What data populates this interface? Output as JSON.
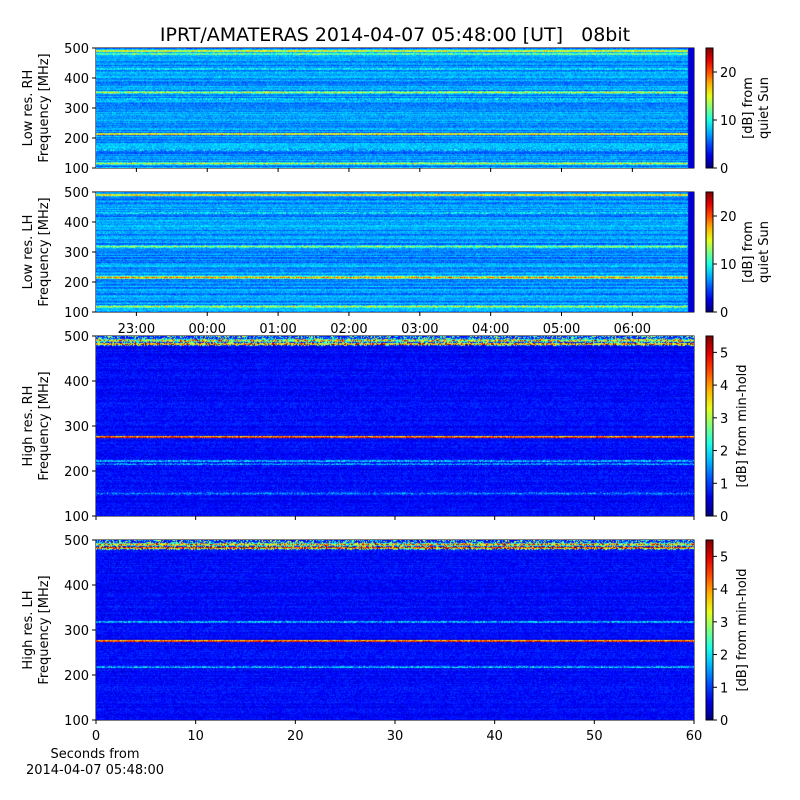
{
  "title": "IPRT/AMATERAS 2014-04-07 05:48:00 [UT]   08bit",
  "bottom_xlabel_line1": "Seconds from",
  "bottom_xlabel_line2": "2014-04-07 05:48:00",
  "marker_color": "#ff00ff",
  "chart_data": [
    {
      "type": "heatmap",
      "name": "low-res-rh",
      "ylabel": [
        "Low res. RH",
        "Frequency [MHz]"
      ],
      "ylim": [
        100,
        500
      ],
      "yticks": [
        100,
        200,
        300,
        400,
        500
      ],
      "xtime_range_h": [
        22.43,
        30.87
      ],
      "marker_time": "05:48",
      "cbar_label": [
        "[dB] from",
        "quiet Sun"
      ],
      "cbar_range": [
        0,
        25
      ],
      "cbar_ticks": [
        0,
        10,
        20
      ],
      "bright_bands_MHz": [
        {
          "f": 490,
          "level": 0.7
        },
        {
          "f": 480,
          "level": 0.55
        },
        {
          "f": 430,
          "level": 0.4
        },
        {
          "f": 352,
          "level": 0.6
        },
        {
          "f": 330,
          "level": 0.38
        },
        {
          "f": 213,
          "level": 0.72
        },
        {
          "f": 160,
          "level": 0.35
        },
        {
          "f": 115,
          "level": 0.6
        }
      ]
    },
    {
      "type": "heatmap",
      "name": "low-res-lh",
      "ylabel": [
        "Low res. LH",
        "Frequency [MHz]"
      ],
      "ylim": [
        100,
        500
      ],
      "yticks": [
        100,
        200,
        300,
        400,
        500
      ],
      "xtime_range_h": [
        22.43,
        30.87
      ],
      "xticks": [
        "23:00",
        "00:00",
        "01:00",
        "02:00",
        "03:00",
        "04:00",
        "05:00",
        "06:00"
      ],
      "marker_time": "05:48",
      "cbar_label": [
        "[dB] from",
        "quiet Sun"
      ],
      "cbar_range": [
        0,
        25
      ],
      "cbar_ticks": [
        0,
        10,
        20
      ],
      "bright_bands_MHz": [
        {
          "f": 490,
          "level": 0.75
        },
        {
          "f": 430,
          "level": 0.4
        },
        {
          "f": 318,
          "level": 0.55
        },
        {
          "f": 215,
          "level": 0.75
        },
        {
          "f": 118,
          "level": 0.6
        }
      ]
    },
    {
      "type": "heatmap",
      "name": "high-res-rh",
      "ylabel": [
        "High res. RH",
        "Frequency [MHz]"
      ],
      "ylim": [
        100,
        500
      ],
      "yticks": [
        100,
        200,
        300,
        400,
        500
      ],
      "xlim": [
        0,
        60
      ],
      "cbar_label": [
        "[dB] from min-hold"
      ],
      "cbar_range": [
        0,
        5.5
      ],
      "cbar_ticks": [
        0,
        1,
        2,
        3,
        4,
        5
      ],
      "bright_bands_MHz": [
        {
          "f": 490,
          "level": 0.55
        },
        {
          "f": 482,
          "level": 0.7
        },
        {
          "f": 275,
          "level": 0.95
        },
        {
          "f": 222,
          "level": 0.35
        },
        {
          "f": 215,
          "level": 0.3
        },
        {
          "f": 150,
          "level": 0.25
        }
      ]
    },
    {
      "type": "heatmap",
      "name": "high-res-lh",
      "ylabel": [
        "High res. LH",
        "Frequency [MHz]"
      ],
      "ylim": [
        100,
        500
      ],
      "yticks": [
        100,
        200,
        300,
        400,
        500
      ],
      "xlim": [
        0,
        60
      ],
      "xticks": [
        0,
        10,
        20,
        30,
        40,
        50,
        60
      ],
      "cbar_label": [
        "[dB] from min-hold"
      ],
      "cbar_range": [
        0,
        5.5
      ],
      "cbar_ticks": [
        0,
        1,
        2,
        3,
        4,
        5
      ],
      "bright_bands_MHz": [
        {
          "f": 490,
          "level": 0.6
        },
        {
          "f": 483,
          "level": 0.8
        },
        {
          "f": 318,
          "level": 0.35
        },
        {
          "f": 275,
          "level": 0.95
        },
        {
          "f": 217,
          "level": 0.35
        }
      ]
    }
  ]
}
